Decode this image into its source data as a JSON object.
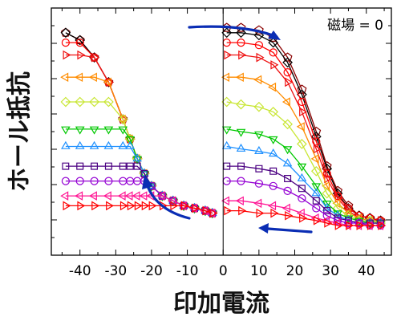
{
  "chart_data": {
    "type": "line",
    "title": "",
    "xlabel": "印加電流",
    "ylabel": "ホール抵抗",
    "annotation": "磁場 = 0",
    "xlim": [
      -48,
      47
    ],
    "ylim": [
      0,
      1
    ],
    "x_tick_labels": [
      "-40",
      "-30",
      "-20",
      "-10",
      "0",
      "10",
      "20",
      "30",
      "40"
    ],
    "x_ticks": [
      -40,
      -30,
      -20,
      -10,
      0,
      10,
      20,
      30,
      40
    ],
    "y_tick_labels": [],
    "grid": false,
    "legend": "none",
    "vertical_line_x": 0,
    "down_sweep_x": [
      -44,
      -40,
      -36,
      -32,
      -28,
      -26,
      -24,
      -22,
      -20,
      -17,
      -14,
      -11,
      -8,
      -5,
      -3
    ],
    "down_sweep_y": [
      0.9,
      0.87,
      0.8,
      0.7,
      0.55,
      0.47,
      0.39,
      0.33,
      0.28,
      0.24,
      0.22,
      0.2,
      0.19,
      0.18,
      0.17
    ],
    "up_sweep_x": [
      1,
      5,
      10,
      14,
      18,
      22,
      26,
      29,
      32,
      35,
      38,
      41,
      44
    ],
    "series": [
      {
        "color": "#8b0000",
        "marker": "pentagon",
        "plateau": 0.92,
        "up_y": [
          0.92,
          0.92,
          0.91,
          0.88,
          0.8,
          0.67,
          0.5,
          0.36,
          0.26,
          0.2,
          0.16,
          0.15,
          0.14
        ]
      },
      {
        "color": "#000000",
        "marker": "diamond",
        "plateau": 0.9,
        "up_y": [
          0.9,
          0.9,
          0.89,
          0.86,
          0.78,
          0.65,
          0.48,
          0.35,
          0.25,
          0.19,
          0.16,
          0.15,
          0.14
        ]
      },
      {
        "color": "#ff0000",
        "marker": "circle",
        "plateau": 0.86,
        "up_y": [
          0.86,
          0.86,
          0.85,
          0.82,
          0.74,
          0.62,
          0.46,
          0.33,
          0.24,
          0.19,
          0.16,
          0.15,
          0.14
        ]
      },
      {
        "color": "#ee1010",
        "marker": "triangle-right",
        "plateau": 0.81,
        "up_y": [
          0.81,
          0.81,
          0.8,
          0.77,
          0.7,
          0.58,
          0.43,
          0.31,
          0.23,
          0.18,
          0.15,
          0.14,
          0.14
        ]
      },
      {
        "color": "#ff8c00",
        "marker": "triangle-left",
        "plateau": 0.72,
        "up_y": [
          0.72,
          0.72,
          0.71,
          0.68,
          0.62,
          0.52,
          0.39,
          0.28,
          0.21,
          0.17,
          0.15,
          0.14,
          0.13
        ]
      },
      {
        "color": "#c8e632",
        "marker": "diamond",
        "plateau": 0.62,
        "up_y": [
          0.62,
          0.61,
          0.6,
          0.58,
          0.53,
          0.45,
          0.34,
          0.25,
          0.19,
          0.16,
          0.14,
          0.14,
          0.13
        ]
      },
      {
        "color": "#00c800",
        "marker": "triangle-down",
        "plateau": 0.51,
        "up_y": [
          0.51,
          0.5,
          0.49,
          0.47,
          0.43,
          0.36,
          0.28,
          0.21,
          0.17,
          0.15,
          0.14,
          0.13,
          0.13
        ]
      },
      {
        "color": "#1e90ff",
        "marker": "triangle-up",
        "plateau": 0.44,
        "up_y": [
          0.44,
          0.43,
          0.42,
          0.41,
          0.37,
          0.31,
          0.25,
          0.19,
          0.16,
          0.14,
          0.13,
          0.13,
          0.13
        ]
      },
      {
        "color": "#4b0082",
        "marker": "square",
        "plateau": 0.36,
        "up_y": [
          0.36,
          0.36,
          0.35,
          0.34,
          0.31,
          0.27,
          0.22,
          0.18,
          0.15,
          0.14,
          0.13,
          0.13,
          0.13
        ]
      },
      {
        "color": "#9400d3",
        "marker": "circle",
        "plateau": 0.3,
        "up_y": [
          0.3,
          0.3,
          0.29,
          0.28,
          0.26,
          0.23,
          0.19,
          0.16,
          0.14,
          0.13,
          0.13,
          0.12,
          0.12
        ]
      },
      {
        "color": "#ff1493",
        "marker": "triangle-left",
        "plateau": 0.24,
        "up_y": [
          0.22,
          0.22,
          0.21,
          0.2,
          0.19,
          0.17,
          0.15,
          0.14,
          0.13,
          0.12,
          0.12,
          0.12,
          0.12
        ]
      },
      {
        "color": "#ff0000",
        "marker": "triangle-right",
        "plateau": 0.2,
        "up_y": [
          0.18,
          0.18,
          0.17,
          0.17,
          0.16,
          0.15,
          0.14,
          0.13,
          0.12,
          0.12,
          0.12,
          0.12,
          0.12
        ]
      }
    ],
    "arrows_color": "#0a2db4"
  }
}
